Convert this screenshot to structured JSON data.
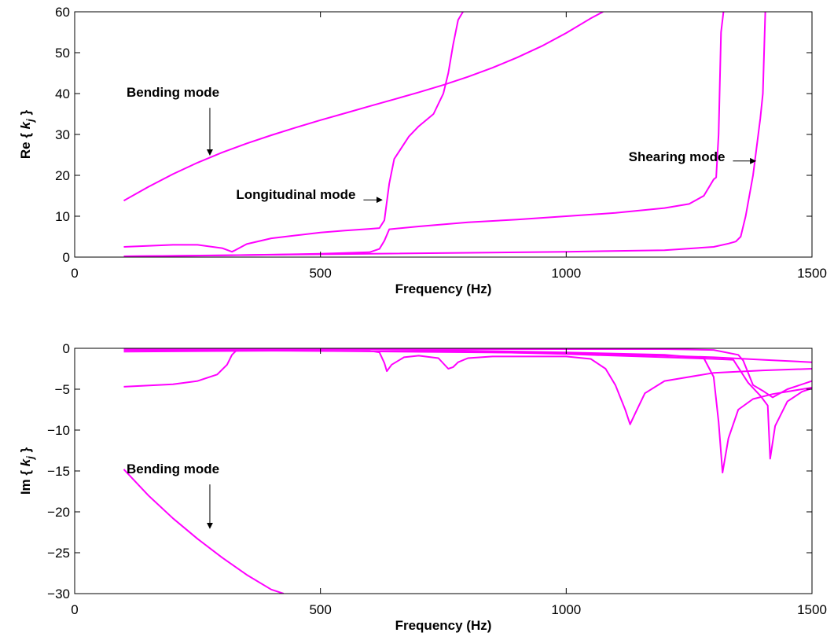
{
  "chart_data": [
    {
      "type": "line",
      "xlabel": "Frequency (Hz)",
      "ylabel_prefix": "Re { ",
      "ylabel_var": "k",
      "ylabel_sub": "j",
      "ylabel_suffix": " }",
      "xlim": [
        0,
        1500
      ],
      "ylim": [
        0,
        60
      ],
      "xticks": [
        0,
        500,
        1000,
        1500
      ],
      "yticks": [
        0,
        10,
        20,
        30,
        40,
        50,
        60
      ],
      "color": "#ff00ff",
      "grid": false,
      "series": [
        {
          "x": [
            100,
            150,
            200,
            250,
            300,
            350,
            400,
            450,
            500,
            550,
            600,
            650,
            700,
            750,
            800,
            850,
            900,
            950,
            1000,
            1050,
            1075
          ],
          "y": [
            13.8,
            17.2,
            20.3,
            23.1,
            25.6,
            27.8,
            29.8,
            31.7,
            33.5,
            35.2,
            36.9,
            38.6,
            40.3,
            42.1,
            44.1,
            46.3,
            48.8,
            51.6,
            54.8,
            58.4,
            60
          ]
        },
        {
          "x": [
            100,
            200,
            250,
            300,
            320,
            325,
            350,
            400,
            450,
            500,
            550,
            600,
            620,
            630,
            640,
            650,
            680,
            700,
            730,
            750,
            760,
            770,
            780,
            790
          ],
          "y": [
            2.5,
            3.0,
            3.0,
            2.2,
            1.3,
            1.6,
            3.2,
            4.6,
            5.3,
            6.0,
            6.5,
            6.9,
            7.1,
            9.0,
            18.0,
            24.0,
            29.5,
            32.0,
            35.0,
            40.0,
            45.0,
            52.0,
            58.0,
            60
          ]
        },
        {
          "x": [
            100,
            300,
            500,
            600,
            620,
            630,
            640,
            700,
            800,
            900,
            1000,
            1100,
            1200,
            1250,
            1280,
            1300,
            1305,
            1310,
            1315,
            1320
          ],
          "y": [
            0.2,
            0.4,
            0.8,
            1.2,
            2.0,
            4.0,
            6.8,
            7.5,
            8.5,
            9.2,
            10.0,
            10.8,
            12.0,
            13.0,
            15.0,
            19.0,
            19.5,
            30.0,
            55.0,
            60
          ]
        },
        {
          "x": [
            100,
            500,
            1000,
            1200,
            1300,
            1330,
            1345,
            1355,
            1365,
            1380,
            1395,
            1400,
            1405
          ],
          "y": [
            0.2,
            0.7,
            1.3,
            1.7,
            2.5,
            3.3,
            3.8,
            5.0,
            10.0,
            20.0,
            34.0,
            40.0,
            60
          ]
        }
      ],
      "annotations": [
        {
          "text": "Bending mode",
          "x": 200,
          "y": 39.2,
          "arrow_to": [
            275,
            25
          ],
          "arrow_dir": "down"
        },
        {
          "text": "Longitudinal mode",
          "x": 450,
          "y": 14.2,
          "arrow_to": [
            625,
            14.0
          ],
          "arrow_dir": "right"
        },
        {
          "text": "Shearing mode",
          "x": 1225,
          "y": 23.5,
          "arrow_to": [
            1385,
            23.5
          ],
          "arrow_dir": "right"
        }
      ]
    },
    {
      "type": "line",
      "xlabel": "Frequency (Hz)",
      "ylabel_prefix": "Im { ",
      "ylabel_var": "k",
      "ylabel_sub": "j",
      "ylabel_suffix": " }",
      "xlim": [
        0,
        1500
      ],
      "ylim": [
        -30,
        0
      ],
      "xticks": [
        0,
        500,
        1000,
        1500
      ],
      "yticks": [
        0,
        -5,
        -10,
        -15,
        -20,
        -25,
        -30
      ],
      "ytick_labels": [
        "0",
        "−5",
        "−10",
        "−15",
        "−20",
        "−25",
        "−30"
      ],
      "color": "#ff00ff",
      "grid": false,
      "series": [
        {
          "x": [
            100,
            150,
            200,
            250,
            300,
            350,
            400,
            425
          ],
          "y": [
            -14.8,
            -18.0,
            -20.8,
            -23.3,
            -25.6,
            -27.7,
            -29.5,
            -30
          ]
        },
        {
          "x": [
            100,
            200,
            250,
            290,
            310,
            320,
            330,
            350,
            500,
            800,
            1000,
            1100,
            1200,
            1300,
            1350,
            1360,
            1380,
            1400,
            1420,
            1450,
            1500
          ],
          "y": [
            -4.7,
            -4.4,
            -4.0,
            -3.2,
            -2.0,
            -0.8,
            -0.2,
            -0.1,
            -0.1,
            -0.1,
            -0.1,
            -0.1,
            -0.1,
            -0.2,
            -0.8,
            -1.5,
            -4.5,
            -5.2,
            -6.0,
            -5.0,
            -4.0
          ]
        },
        {
          "x": [
            100,
            400,
            600,
            620,
            630,
            635,
            645,
            670,
            700,
            740,
            760,
            770,
            780,
            800,
            850,
            900,
            1000,
            1050,
            1080,
            1100,
            1120,
            1130,
            1140,
            1160,
            1200,
            1300,
            1400,
            1500
          ],
          "y": [
            -0.4,
            -0.3,
            -0.3,
            -0.5,
            -1.8,
            -2.8,
            -2.0,
            -1.1,
            -0.9,
            -1.2,
            -2.5,
            -2.3,
            -1.7,
            -1.2,
            -1.0,
            -1.0,
            -1.0,
            -1.3,
            -2.5,
            -4.5,
            -7.5,
            -9.3,
            -8.0,
            -5.5,
            -4.0,
            -3.0,
            -2.7,
            -2.5
          ]
        },
        {
          "x": [
            100,
            600,
            1000,
            1200,
            1280,
            1300,
            1310,
            1318,
            1330,
            1350,
            1380,
            1420,
            1500
          ],
          "y": [
            -0.05,
            -0.1,
            -0.5,
            -0.8,
            -1.2,
            -3.5,
            -9.0,
            -15.2,
            -11.0,
            -7.5,
            -6.2,
            -5.6,
            -4.8
          ]
        },
        {
          "x": [
            100,
            800,
            1000,
            1200,
            1300,
            1340,
            1370,
            1395,
            1410,
            1415,
            1425,
            1450,
            1480,
            1500
          ],
          "y": [
            -0.2,
            -0.4,
            -0.7,
            -1.1,
            -1.3,
            -1.4,
            -4.2,
            -5.8,
            -7.0,
            -13.5,
            -9.5,
            -6.5,
            -5.3,
            -4.9
          ]
        },
        {
          "x": [
            100,
            1000,
            1200,
            1300,
            1400,
            1500
          ],
          "y": [
            -0.1,
            -0.6,
            -0.9,
            -1.1,
            -1.4,
            -1.7
          ]
        }
      ],
      "annotations": [
        {
          "text": "Bending mode",
          "x": 200,
          "y": -15.3,
          "arrow_to": [
            275,
            -22
          ],
          "arrow_dir": "down"
        }
      ]
    }
  ]
}
